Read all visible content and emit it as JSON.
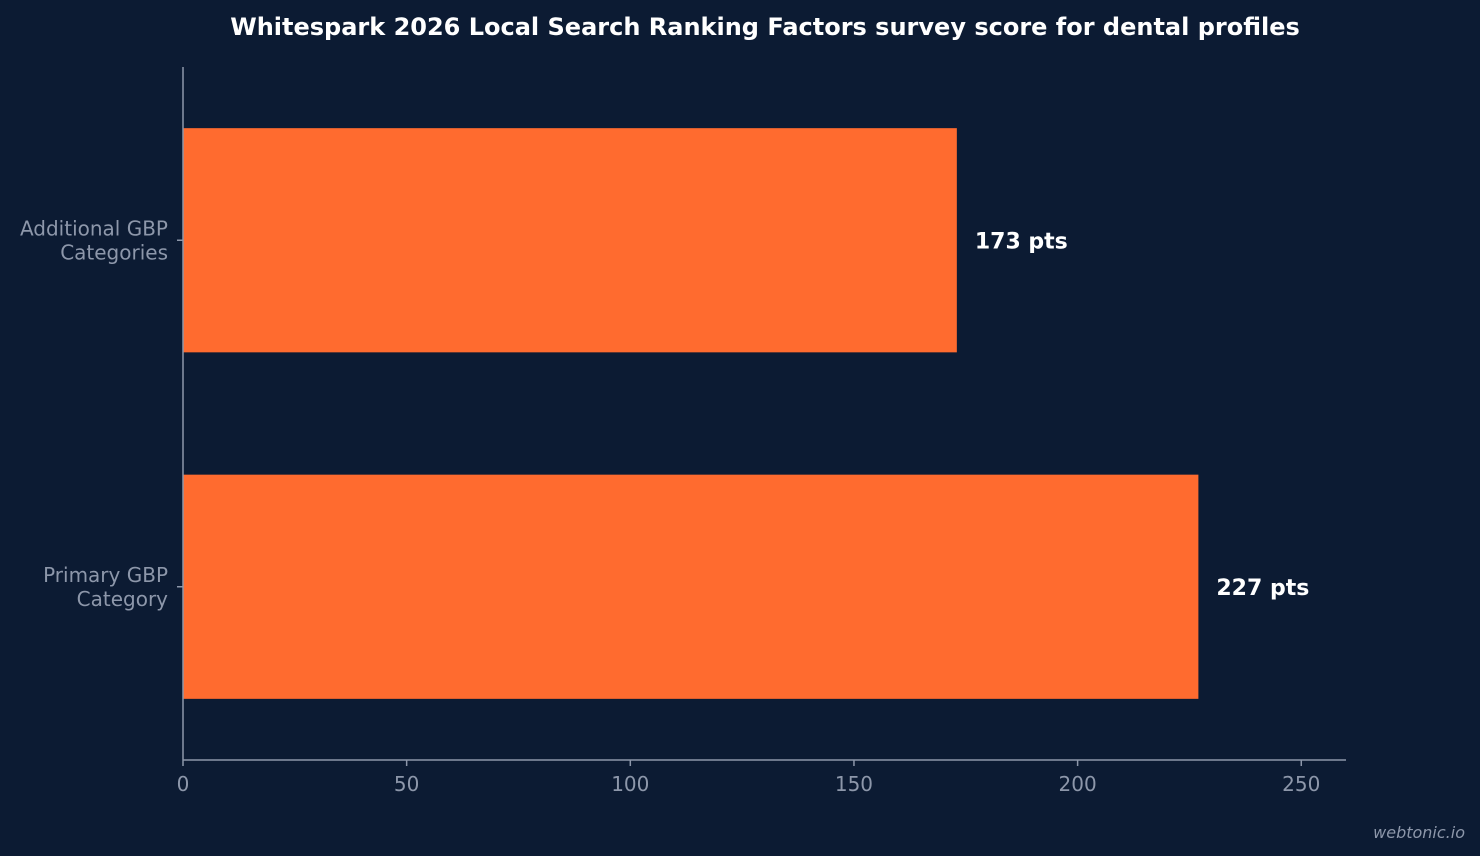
{
  "chart_data": {
    "type": "bar",
    "orientation": "horizontal",
    "title": "Whitespark 2026 Local Search Ranking Factors survey score for dental profiles",
    "categories": [
      [
        "Additional GBP",
        "Categories"
      ],
      [
        "Primary GBP",
        "Category"
      ]
    ],
    "values": [
      173,
      227
    ],
    "data_labels": [
      "173 pts",
      "227 pts"
    ],
    "xlim": [
      0,
      260
    ],
    "xticks": [
      0,
      50,
      100,
      150,
      200,
      250
    ],
    "xlabel": "",
    "ylabel": "",
    "grid": false,
    "legend": "none",
    "bar_color": "#ff6b2f"
  },
  "watermark": "webtonic.io"
}
